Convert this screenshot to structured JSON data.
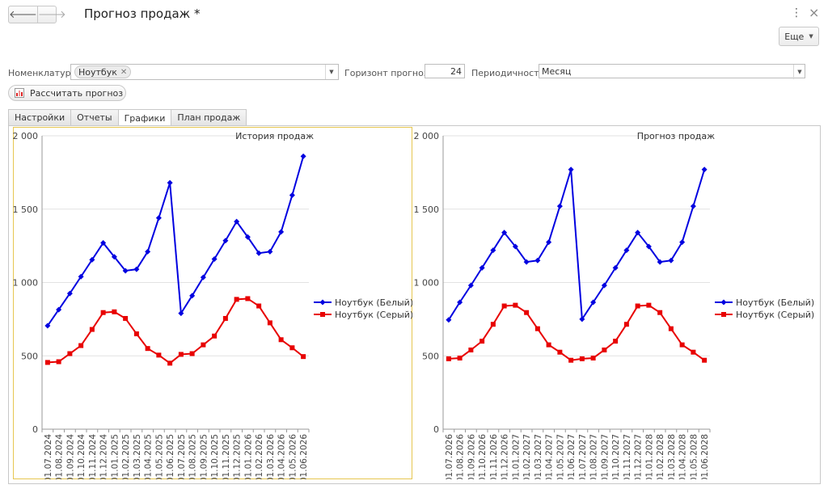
{
  "window": {
    "title": "Прогноз продаж *"
  },
  "toolbar": {
    "back": "🡐",
    "forward": "🡒",
    "more_label": "Еще",
    "menu_icon": "⋮",
    "close_icon": "×"
  },
  "form": {
    "nomenclature_label": "Номенклатура:",
    "nomenclature_value": "Ноутбук",
    "horizon_label": "Горизонт прогноза:",
    "horizon_value": "24",
    "period_label": "Периодичность:",
    "period_value": "Месяц",
    "calculate_label": "Рассчитать прогноз"
  },
  "tabs": [
    {
      "label": "Настройки",
      "active": false
    },
    {
      "label": "Отчеты",
      "active": false
    },
    {
      "label": "Графики",
      "active": true
    },
    {
      "label": "План продаж",
      "active": false
    }
  ],
  "chart_data": [
    {
      "type": "line",
      "title": "История продаж",
      "ylim": [
        0,
        2000
      ],
      "yticks": [
        0,
        500,
        1000,
        1500,
        2000
      ],
      "ytick_labels": [
        "0",
        "500",
        "1 000",
        "1 500",
        "2 000"
      ],
      "grid": true,
      "legend": "right",
      "selected": true,
      "x": [
        "01.07.2024",
        "01.08.2024",
        "01.09.2024",
        "01.10.2024",
        "01.11.2024",
        "01.12.2024",
        "01.01.2025",
        "01.02.2025",
        "01.03.2025",
        "01.04.2025",
        "01.05.2025",
        "01.06.2025",
        "01.07.2025",
        "01.08.2025",
        "01.09.2025",
        "01.10.2025",
        "01.11.2025",
        "01.12.2025",
        "01.01.2026",
        "01.02.2026",
        "01.03.2026",
        "01.04.2026",
        "01.05.2026",
        "01.06.2026"
      ],
      "series": [
        {
          "name": "Ноутбук (Белый)",
          "color": "#0000e0",
          "marker": "diamond",
          "values": [
            705,
            815,
            925,
            1040,
            1155,
            1270,
            1175,
            1080,
            1090,
            1210,
            1440,
            1680,
            790,
            910,
            1035,
            1160,
            1285,
            1415,
            1310,
            1200,
            1210,
            1345,
            1595,
            1860
          ]
        },
        {
          "name": "Ноутбук (Серый)",
          "color": "#e80000",
          "marker": "square",
          "values": [
            455,
            460,
            515,
            570,
            680,
            795,
            800,
            755,
            650,
            550,
            505,
            450,
            510,
            515,
            575,
            635,
            755,
            885,
            890,
            840,
            725,
            610,
            555,
            495
          ]
        }
      ]
    },
    {
      "type": "line",
      "title": "Прогноз продаж",
      "ylim": [
        0,
        2000
      ],
      "yticks": [
        0,
        500,
        1000,
        1500,
        2000
      ],
      "ytick_labels": [
        "0",
        "500",
        "1 000",
        "1 500",
        "2 000"
      ],
      "grid": true,
      "legend": "right",
      "selected": false,
      "x": [
        "01.07.2026",
        "01.08.2026",
        "01.09.2026",
        "01.10.2026",
        "01.11.2026",
        "01.12.2026",
        "01.01.2027",
        "01.02.2027",
        "01.03.2027",
        "01.04.2027",
        "01.05.2027",
        "01.06.2027",
        "01.07.2027",
        "01.08.2027",
        "01.09.2027",
        "01.10.2027",
        "01.11.2027",
        "01.12.2027",
        "01.01.2028",
        "01.02.2028",
        "01.03.2028",
        "01.04.2028",
        "01.05.2028",
        "01.06.2028"
      ],
      "series": [
        {
          "name": "Ноутбук (Белый)",
          "color": "#0000e0",
          "marker": "diamond",
          "values": [
            745,
            865,
            980,
            1100,
            1220,
            1340,
            1245,
            1140,
            1150,
            1275,
            1520,
            1770,
            750,
            865,
            980,
            1100,
            1220,
            1340,
            1245,
            1140,
            1150,
            1275,
            1520,
            1770
          ]
        },
        {
          "name": "Ноутбук (Серый)",
          "color": "#e80000",
          "marker": "square",
          "values": [
            480,
            485,
            540,
            600,
            715,
            840,
            845,
            795,
            685,
            575,
            525,
            470,
            480,
            485,
            540,
            600,
            715,
            840,
            845,
            795,
            685,
            575,
            525,
            470
          ]
        }
      ]
    }
  ]
}
